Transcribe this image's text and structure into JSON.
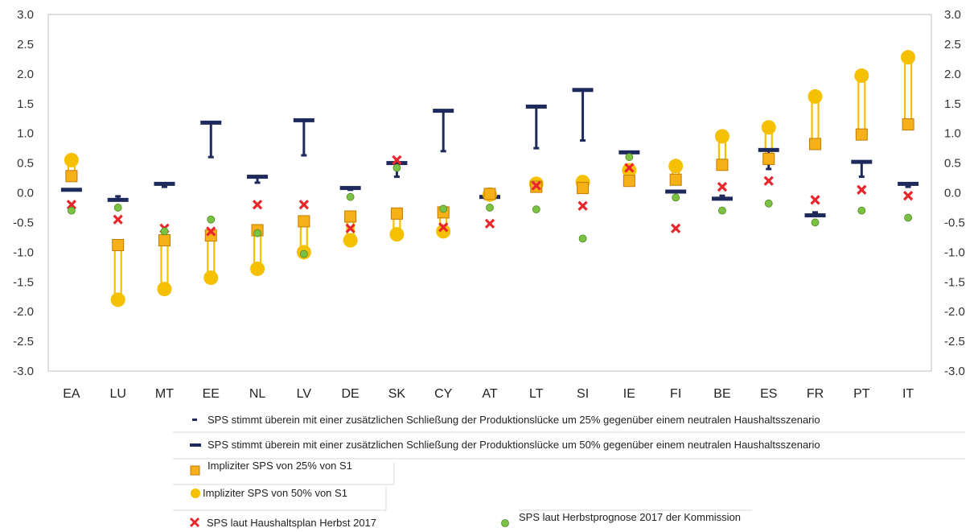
{
  "chart_data": {
    "type": "scatter",
    "categories": [
      "EA",
      "LU",
      "MT",
      "EE",
      "NL",
      "LV",
      "DE",
      "SK",
      "CY",
      "AT",
      "LT",
      "SI",
      "IE",
      "FI",
      "BE",
      "ES",
      "FR",
      "PT",
      "IT"
    ],
    "ylim": [
      -3.0,
      3.0
    ],
    "y_ticks": [
      "3.0",
      "2.5",
      "2.0",
      "1.5",
      "1.0",
      "0.5",
      "0.0",
      "-0.5",
      "-1.0",
      "-1.5",
      "-2.0",
      "-2.5",
      "-3.0"
    ],
    "grid": false,
    "legend_position": "bottom",
    "series": [
      {
        "name": "SPS stimmt überein mit einer zusätzlichen Schließung der Produktionslücke um 25% gegenüber einem neutralen Haushaltsszenario",
        "marker": "small-dash",
        "color": "#1f2a5c",
        "values": [
          0.05,
          -0.06,
          0.1,
          0.6,
          0.17,
          0.63,
          0.05,
          0.27,
          0.7,
          -0.05,
          0.75,
          0.88,
          0.65,
          0.02,
          -0.05,
          0.4,
          -0.33,
          0.27,
          0.1
        ]
      },
      {
        "name": "SPS stimmt überein mit einer zusätzlichen Schließung der Produktionslücke um 50% gegenüber einem neutralen Haushaltsszenario",
        "marker": "dash",
        "color": "#1f2a5c",
        "values": [
          0.05,
          -0.12,
          0.15,
          1.18,
          0.27,
          1.22,
          0.08,
          0.5,
          1.38,
          -0.07,
          1.45,
          1.73,
          0.68,
          0.02,
          -0.1,
          0.72,
          -0.38,
          0.52,
          0.15
        ]
      },
      {
        "name": "Impliziter SPS von 25% von S1",
        "marker": "square",
        "color": "#f5b117",
        "values": [
          0.28,
          -0.88,
          -0.8,
          -0.72,
          -0.63,
          -0.48,
          -0.4,
          -0.35,
          -0.33,
          -0.02,
          0.1,
          0.08,
          0.2,
          0.22,
          0.47,
          0.57,
          0.82,
          0.98,
          1.15
        ]
      },
      {
        "name": "Impliziter SPS von 50% von S1",
        "marker": "circle",
        "color": "#f5c000",
        "values": [
          0.55,
          -1.8,
          -1.62,
          -1.43,
          -1.28,
          -1.0,
          -0.8,
          -0.7,
          -0.65,
          -0.03,
          0.15,
          0.18,
          0.38,
          0.45,
          0.95,
          1.1,
          1.62,
          1.97,
          2.28
        ]
      },
      {
        "name": "SPS laut Haushaltsplan Herbst 2017",
        "marker": "x",
        "color": "#e8262b",
        "values": [
          -0.2,
          -0.45,
          -0.6,
          -0.65,
          -0.2,
          -0.2,
          -0.6,
          0.55,
          -0.58,
          -0.52,
          0.12,
          -0.22,
          0.42,
          -0.6,
          0.1,
          0.2,
          -0.12,
          0.05,
          -0.05
        ]
      },
      {
        "name": "SPS laut  Herbstprognose 2017 der Kommission",
        "marker": "dot",
        "color": "#7cc242",
        "values": [
          -0.3,
          -0.25,
          -0.65,
          -0.45,
          -0.68,
          -1.03,
          -0.07,
          0.42,
          -0.27,
          -0.25,
          -0.28,
          -0.77,
          0.6,
          -0.08,
          -0.3,
          -0.18,
          -0.5,
          -0.3,
          -0.42
        ]
      }
    ]
  },
  "legend": {
    "l25": "SPS stimmt überein mit einer zusätzlichen Schließung der Produktionslücke um 25% gegenüber einem neutralen Haushaltsszenario",
    "l50": "SPS stimmt überein mit einer zusätzlichen Schließung der Produktionslücke um 50% gegenüber einem neutralen Haushaltsszenario",
    "sq": "Impliziter SPS von 25% von S1",
    "circ": "Impliziter SPS von 50% von S1",
    "x": "SPS laut Haushaltsplan Herbst 2017",
    "dot": "SPS laut  Herbstprognose 2017 der Kommission"
  }
}
